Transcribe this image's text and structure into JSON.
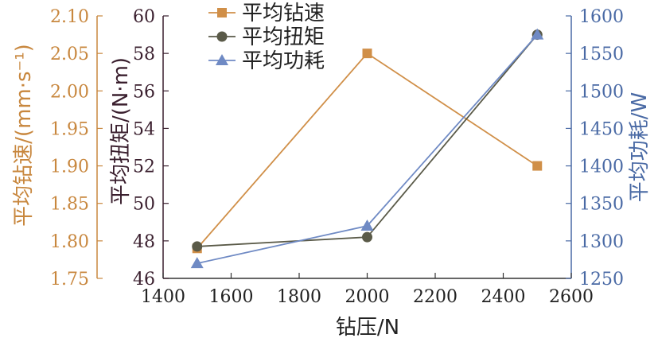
{
  "chart_data": {
    "type": "line",
    "xlabel": "钻压/N",
    "xlim": [
      1400,
      2600
    ],
    "x_ticks": [
      "1400",
      "1600",
      "1800",
      "2000",
      "2200",
      "2400",
      "2600"
    ],
    "x": [
      1500,
      2000,
      2500
    ],
    "axes": {
      "speed": {
        "label": "平均钻速/(mm·s⁻¹)",
        "lim": [
          1.75,
          2.1
        ],
        "ticks": [
          "1.75",
          "1.80",
          "1.85",
          "1.90",
          "1.95",
          "2.00",
          "2.05",
          "2.10"
        ],
        "color": "#c8873e"
      },
      "torque": {
        "label": "平均扭矩/(N·m)",
        "lim": [
          46,
          60
        ],
        "ticks": [
          "46",
          "48",
          "50",
          "52",
          "54",
          "56",
          "58",
          "60"
        ],
        "color": "#3a1f2e"
      },
      "power": {
        "label": "平均功耗/W",
        "lim": [
          1250,
          1600
        ],
        "ticks": [
          "1250",
          "1300",
          "1350",
          "1400",
          "1450",
          "1500",
          "1550",
          "1600"
        ],
        "color": "#4a6aa5"
      }
    },
    "series": [
      {
        "name": "平均钻速",
        "axis": "speed",
        "values": [
          1.79,
          2.05,
          1.9
        ],
        "color": "#d08f48",
        "marker": "square"
      },
      {
        "name": "平均扭矩",
        "axis": "torque",
        "values": [
          47.7,
          48.2,
          59.0
        ],
        "color": "#5a5a48",
        "marker": "circle"
      },
      {
        "name": "平均功耗",
        "axis": "power",
        "values": [
          1270,
          1320,
          1575
        ],
        "color": "#6f8ac4",
        "marker": "triangle"
      }
    ],
    "legend_position": "top-center"
  }
}
